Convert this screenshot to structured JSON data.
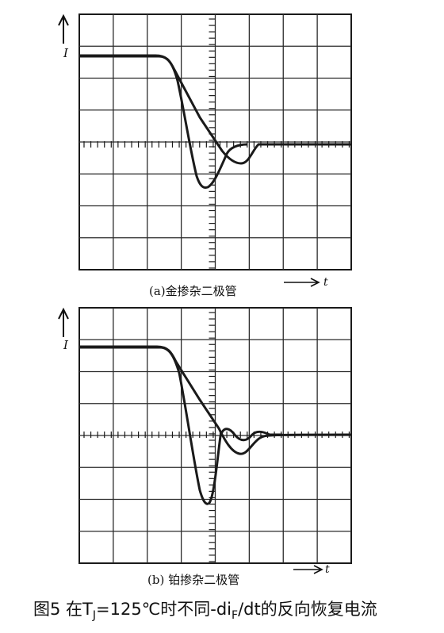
{
  "panels": [
    {
      "id": "a",
      "axis_label": "I",
      "time_label": "t",
      "subcaption": "(a)金掺杂二极管"
    },
    {
      "id": "b",
      "axis_label": "I",
      "time_label": "t",
      "subcaption": "(b) 铂掺杂二极管"
    }
  ],
  "caption": {
    "prefix": "图5  在T",
    "subscript": "J",
    "suffix": "=125℃时不同-di",
    "subscript2": "F",
    "suffix2": "/dt的反向恢复电流"
  },
  "colors": {
    "ink": "#1a1a1a",
    "grid": "#2a2a2a",
    "background": "#ffffff"
  }
}
